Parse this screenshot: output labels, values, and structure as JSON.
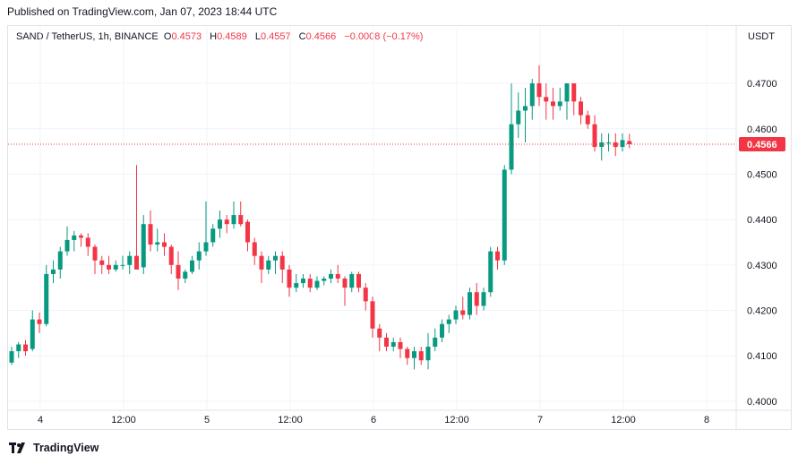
{
  "header": {
    "published": "Published on TradingView.com, Jan 07, 2023 18:44 UTC"
  },
  "legend": {
    "symbol": "SAND / TetherUS, 1h, BINANCE",
    "o_label": "O",
    "o_value": "0.4573",
    "h_label": "H",
    "h_value": "0.4589",
    "l_label": "L",
    "l_value": "0.4557",
    "c_label": "C",
    "c_value": "0.4566",
    "change": "−0.0008 (−0.17%)"
  },
  "axis": {
    "currency": "USDT"
  },
  "footer": {
    "brand": "TradingView"
  },
  "chart_data": {
    "type": "candlestick",
    "title": "SAND / TetherUS, 1h, BINANCE",
    "ylim": [
      0.398,
      0.4785
    ],
    "y_ticks": [
      "0.4700",
      "0.4600",
      "0.4500",
      "0.4400",
      "0.4300",
      "0.4200",
      "0.4100",
      "0.4000"
    ],
    "x_ticks": [
      "4",
      "12:00",
      "5",
      "12:00",
      "6",
      "12:00",
      "7",
      "12:00",
      "8"
    ],
    "last_price": "0.4566",
    "colors": {
      "up": "#089981",
      "down": "#f23645"
    },
    "candles": [
      [
        0.4085,
        0.412,
        0.408,
        0.411
      ],
      [
        0.411,
        0.413,
        0.4095,
        0.4125
      ],
      [
        0.4125,
        0.4135,
        0.41,
        0.411
      ],
      [
        0.4115,
        0.42,
        0.411,
        0.418
      ],
      [
        0.418,
        0.4195,
        0.415,
        0.417
      ],
      [
        0.417,
        0.43,
        0.4165,
        0.428
      ],
      [
        0.428,
        0.431,
        0.426,
        0.429
      ],
      [
        0.429,
        0.434,
        0.427,
        0.433
      ],
      [
        0.433,
        0.4385,
        0.432,
        0.4355
      ],
      [
        0.4355,
        0.4375,
        0.433,
        0.4365
      ],
      [
        0.4365,
        0.437,
        0.434,
        0.436
      ],
      [
        0.436,
        0.437,
        0.432,
        0.434
      ],
      [
        0.434,
        0.4345,
        0.428,
        0.431
      ],
      [
        0.431,
        0.432,
        0.428,
        0.43
      ],
      [
        0.43,
        0.432,
        0.428,
        0.429
      ],
      [
        0.429,
        0.431,
        0.4285,
        0.43
      ],
      [
        0.43,
        0.432,
        0.429,
        0.43
      ],
      [
        0.43,
        0.433,
        0.428,
        0.432
      ],
      [
        0.432,
        0.452,
        0.429,
        0.429
      ],
      [
        0.4295,
        0.441,
        0.428,
        0.439
      ],
      [
        0.439,
        0.442,
        0.433,
        0.4345
      ],
      [
        0.4345,
        0.438,
        0.433,
        0.435
      ],
      [
        0.435,
        0.437,
        0.432,
        0.434
      ],
      [
        0.434,
        0.4345,
        0.428,
        0.43
      ],
      [
        0.43,
        0.433,
        0.4245,
        0.427
      ],
      [
        0.427,
        0.429,
        0.426,
        0.4285
      ],
      [
        0.4285,
        0.432,
        0.428,
        0.431
      ],
      [
        0.431,
        0.435,
        0.429,
        0.433
      ],
      [
        0.433,
        0.444,
        0.432,
        0.435
      ],
      [
        0.435,
        0.439,
        0.434,
        0.438
      ],
      [
        0.438,
        0.442,
        0.436,
        0.44
      ],
      [
        0.44,
        0.441,
        0.437,
        0.439
      ],
      [
        0.439,
        0.444,
        0.438,
        0.441
      ],
      [
        0.441,
        0.444,
        0.4385,
        0.439
      ],
      [
        0.4395,
        0.44,
        0.433,
        0.435
      ],
      [
        0.435,
        0.436,
        0.43,
        0.432
      ],
      [
        0.432,
        0.433,
        0.426,
        0.429
      ],
      [
        0.429,
        0.432,
        0.428,
        0.431
      ],
      [
        0.431,
        0.433,
        0.428,
        0.432
      ],
      [
        0.432,
        0.433,
        0.426,
        0.429
      ],
      [
        0.429,
        0.43,
        0.423,
        0.425
      ],
      [
        0.425,
        0.428,
        0.424,
        0.426
      ],
      [
        0.426,
        0.428,
        0.425,
        0.427
      ],
      [
        0.427,
        0.428,
        0.424,
        0.425
      ],
      [
        0.425,
        0.4275,
        0.4245,
        0.4265
      ],
      [
        0.4265,
        0.4275,
        0.4255,
        0.427
      ],
      [
        0.427,
        0.429,
        0.426,
        0.428
      ],
      [
        0.428,
        0.43,
        0.426,
        0.427
      ],
      [
        0.427,
        0.4275,
        0.421,
        0.425
      ],
      [
        0.425,
        0.4285,
        0.424,
        0.428
      ],
      [
        0.428,
        0.4285,
        0.424,
        0.425
      ],
      [
        0.425,
        0.426,
        0.42,
        0.422
      ],
      [
        0.422,
        0.423,
        0.414,
        0.416
      ],
      [
        0.416,
        0.417,
        0.411,
        0.414
      ],
      [
        0.414,
        0.415,
        0.411,
        0.412
      ],
      [
        0.412,
        0.414,
        0.411,
        0.413
      ],
      [
        0.413,
        0.414,
        0.4095,
        0.4115
      ],
      [
        0.4115,
        0.412,
        0.408,
        0.4095
      ],
      [
        0.4095,
        0.412,
        0.407,
        0.411
      ],
      [
        0.411,
        0.412,
        0.408,
        0.409
      ],
      [
        0.409,
        0.415,
        0.407,
        0.412
      ],
      [
        0.412,
        0.416,
        0.411,
        0.414
      ],
      [
        0.414,
        0.418,
        0.413,
        0.417
      ],
      [
        0.417,
        0.419,
        0.415,
        0.418
      ],
      [
        0.418,
        0.421,
        0.417,
        0.42
      ],
      [
        0.42,
        0.423,
        0.418,
        0.419
      ],
      [
        0.419,
        0.425,
        0.418,
        0.424
      ],
      [
        0.424,
        0.426,
        0.419,
        0.421
      ],
      [
        0.421,
        0.425,
        0.42,
        0.424
      ],
      [
        0.424,
        0.434,
        0.423,
        0.433
      ],
      [
        0.433,
        0.434,
        0.429,
        0.431
      ],
      [
        0.431,
        0.452,
        0.43,
        0.451
      ],
      [
        0.451,
        0.47,
        0.45,
        0.461
      ],
      [
        0.461,
        0.468,
        0.458,
        0.464
      ],
      [
        0.464,
        0.469,
        0.457,
        0.465
      ],
      [
        0.465,
        0.471,
        0.462,
        0.47
      ],
      [
        0.47,
        0.474,
        0.465,
        0.467
      ],
      [
        0.467,
        0.47,
        0.462,
        0.466
      ],
      [
        0.466,
        0.469,
        0.462,
        0.465
      ],
      [
        0.465,
        0.469,
        0.464,
        0.466
      ],
      [
        0.466,
        0.47,
        0.462,
        0.47
      ],
      [
        0.47,
        0.47,
        0.463,
        0.466
      ],
      [
        0.466,
        0.467,
        0.461,
        0.463
      ],
      [
        0.463,
        0.464,
        0.46,
        0.461
      ],
      [
        0.461,
        0.463,
        0.455,
        0.456
      ],
      [
        0.456,
        0.459,
        0.453,
        0.457
      ],
      [
        0.457,
        0.459,
        0.455,
        0.457
      ],
      [
        0.457,
        0.459,
        0.454,
        0.456
      ],
      [
        0.456,
        0.459,
        0.455,
        0.4575
      ],
      [
        0.4573,
        0.4589,
        0.4557,
        0.4566
      ]
    ]
  }
}
